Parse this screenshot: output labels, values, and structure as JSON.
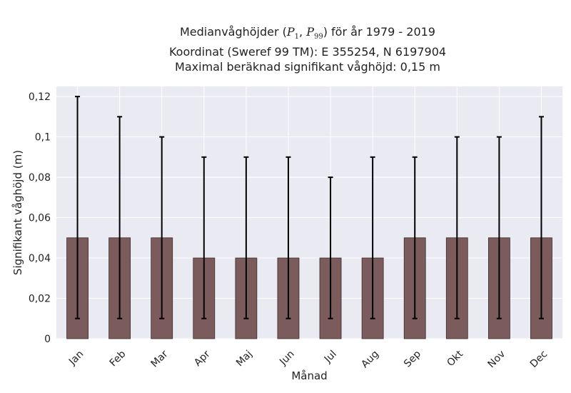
{
  "chart_data": {
    "type": "bar",
    "title_line1_prefix": "Medianvåghöjder (",
    "title_p1_symbol": "P",
    "title_p1_sub": "1",
    "title_sep": ", ",
    "title_p99_symbol": "P",
    "title_p99_sub": "99",
    "title_line1_suffix": ") för år 1979 - 2019",
    "title_line2": "Koordinat (Sweref 99 TM): E 355254, N 6197904",
    "title_line3": "Maximal beräknad signifikant våghöjd: 0,15 m",
    "xlabel": "Månad",
    "ylabel": "Signifikant våghöjd (m)",
    "ylim": [
      0,
      0.125
    ],
    "yticks": [
      0,
      0.02,
      0.04,
      0.06,
      0.08,
      0.1,
      0.12
    ],
    "ytick_labels": [
      "0",
      "0,02",
      "0,04",
      "0,06",
      "0,08",
      "0,1",
      "0,12"
    ],
    "categories": [
      "Jan",
      "Feb",
      "Mar",
      "Apr",
      "Maj",
      "Jun",
      "Jul",
      "Aug",
      "Sep",
      "Okt",
      "Nov",
      "Dec"
    ],
    "values": [
      0.05,
      0.05,
      0.05,
      0.04,
      0.04,
      0.04,
      0.04,
      0.04,
      0.05,
      0.05,
      0.05,
      0.05
    ],
    "p1": [
      0.01,
      0.01,
      0.01,
      0.01,
      0.01,
      0.01,
      0.01,
      0.01,
      0.01,
      0.01,
      0.01,
      0.01
    ],
    "p99": [
      0.12,
      0.11,
      0.1,
      0.09,
      0.09,
      0.09,
      0.08,
      0.09,
      0.09,
      0.1,
      0.1,
      0.11
    ],
    "grid": true,
    "legend": "none",
    "colors": {
      "bar": "#7b5b5b",
      "bar_edge": "#3a2a2a",
      "background": "#eaeaf2",
      "grid": "#ffffff",
      "errorbar": "#000000"
    }
  }
}
